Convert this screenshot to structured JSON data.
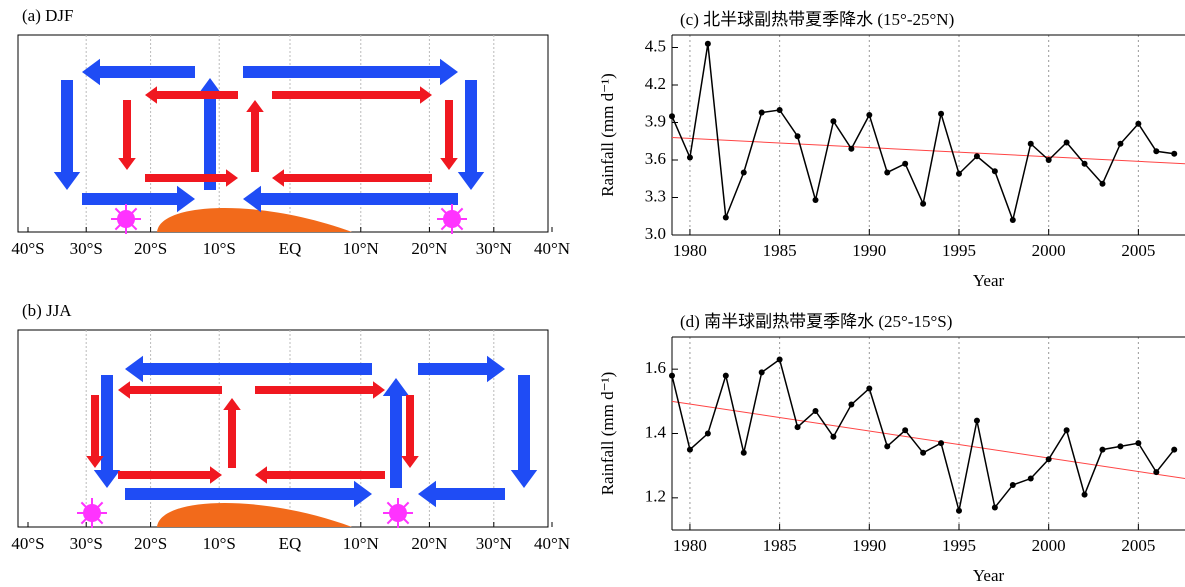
{
  "chart_data": [
    {
      "type": "schematic",
      "title": "(a)  DJF",
      "xlim": [
        -40,
        40
      ],
      "xticks": [
        {
          "value": -40,
          "label": "40°S"
        },
        {
          "value": -30,
          "label": "30°S"
        },
        {
          "value": -20,
          "label": "20°S"
        },
        {
          "value": -10,
          "label": "10°S"
        },
        {
          "value": 0,
          "label": "EQ"
        },
        {
          "value": 10,
          "label": "10°N"
        },
        {
          "value": 20,
          "label": "20°N"
        },
        {
          "value": 30,
          "label": "30°N"
        },
        {
          "value": 40,
          "label": "40°N"
        }
      ],
      "grid": "x"
    },
    {
      "type": "schematic",
      "title": "(b)  JJA",
      "xlim": [
        -40,
        40
      ],
      "xticks": [
        {
          "value": -40,
          "label": "40°S"
        },
        {
          "value": -30,
          "label": "30°S"
        },
        {
          "value": -20,
          "label": "20°S"
        },
        {
          "value": -10,
          "label": "10°S"
        },
        {
          "value": 0,
          "label": "EQ"
        },
        {
          "value": 10,
          "label": "10°N"
        },
        {
          "value": 20,
          "label": "20°N"
        },
        {
          "value": 30,
          "label": "30°N"
        },
        {
          "value": 40,
          "label": "40°N"
        }
      ],
      "grid": "x"
    },
    {
      "type": "line",
      "title": "(c)  北半球副热带夏季降水 (15°-25°N)",
      "xlabel": "Year",
      "ylabel": "Rainfall (mm d⁻¹)",
      "xlim": [
        1979,
        2007.6
      ],
      "xticks": [
        1980,
        1985,
        1990,
        1995,
        2000,
        2005
      ],
      "ylim": [
        3.0,
        4.6
      ],
      "yticks": [
        {
          "value": 3,
          "label": "3.0"
        },
        3.3,
        3.6,
        3.9,
        4.2,
        4.5
      ],
      "grid": "x",
      "x": [
        1979,
        1980,
        1981,
        1982,
        1983,
        1984,
        1985,
        1986,
        1987,
        1988,
        1989,
        1990,
        1991,
        1992,
        1993,
        1994,
        1995,
        1996,
        1997,
        1998,
        1999,
        2000,
        2001,
        2002,
        2003,
        2004,
        2005,
        2006,
        2007
      ],
      "series": [
        {
          "color": "#000000",
          "values": [
            3.95,
            3.62,
            4.53,
            3.14,
            3.5,
            3.98,
            4.0,
            3.79,
            3.28,
            3.91,
            3.69,
            3.96,
            3.5,
            3.57,
            3.25,
            3.97,
            3.49,
            3.63,
            3.51,
            3.12,
            3.73,
            3.6,
            3.74,
            3.57,
            3.41,
            3.73,
            3.89,
            3.67,
            3.65
          ]
        }
      ],
      "trend": {
        "color": "#ff4444",
        "x": [
          1979,
          2007.6
        ],
        "values": [
          3.78,
          3.57
        ]
      }
    },
    {
      "type": "line",
      "title": "(d)  南半球副热带夏季降水 (25°-15°S)",
      "xlabel": "Year",
      "ylabel": "Rainfall (mm d⁻¹)",
      "xlim": [
        1979,
        2007.6
      ],
      "xticks": [
        1980,
        1985,
        1990,
        1995,
        2000,
        2005
      ],
      "ylim": [
        1.1,
        1.7
      ],
      "yticks": [
        1.2,
        1.4,
        1.6
      ],
      "grid": "x",
      "x": [
        1979,
        1980,
        1981,
        1982,
        1983,
        1984,
        1985,
        1986,
        1987,
        1988,
        1989,
        1990,
        1991,
        1992,
        1993,
        1994,
        1995,
        1996,
        1997,
        1998,
        1999,
        2000,
        2001,
        2002,
        2003,
        2004,
        2005,
        2006,
        2007
      ],
      "series": [
        {
          "color": "#000000",
          "values": [
            1.58,
            1.35,
            1.4,
            1.58,
            1.34,
            1.59,
            1.63,
            1.42,
            1.47,
            1.39,
            1.49,
            1.54,
            1.36,
            1.41,
            1.34,
            1.37,
            1.16,
            1.44,
            1.17,
            1.24,
            1.26,
            1.32,
            1.41,
            1.21,
            1.35,
            1.36,
            1.37,
            1.28,
            1.35
          ]
        }
      ],
      "trend": {
        "color": "#ff4444",
        "x": [
          1979,
          2007.6
        ],
        "values": [
          1.5,
          1.26
        ]
      }
    }
  ]
}
